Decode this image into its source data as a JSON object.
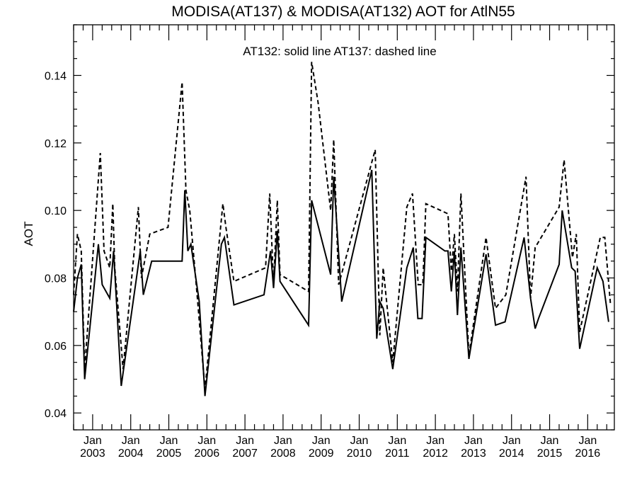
{
  "chart_data": {
    "type": "line",
    "title": "MODISA(AT137) & MODISA(AT132)  AOT for AtlN55",
    "annotation": "AT132: solid line   AT137: dashed line",
    "xlabel": "",
    "ylabel": "AOT",
    "ylim": [
      0.035,
      0.155
    ],
    "xlim": [
      2002.5,
      2016.7
    ],
    "y_ticks": [
      0.04,
      0.06,
      0.08,
      0.1,
      0.12,
      0.14
    ],
    "y_tick_labels": [
      "0.04",
      "0.06",
      "0.08",
      "0.10",
      "0.12",
      "0.14"
    ],
    "x_ticks": [
      {
        "x": 2003.0,
        "month": "Jan",
        "year": "2003"
      },
      {
        "x": 2004.0,
        "month": "Jan",
        "year": "2004"
      },
      {
        "x": 2005.0,
        "month": "Jan",
        "year": "2005"
      },
      {
        "x": 2006.0,
        "month": "Jan",
        "year": "2006"
      },
      {
        "x": 2007.0,
        "month": "Jan",
        "year": "2007"
      },
      {
        "x": 2008.0,
        "month": "Jan",
        "year": "2008"
      },
      {
        "x": 2009.0,
        "month": "Jan",
        "year": "2009"
      },
      {
        "x": 2010.0,
        "month": "Jan",
        "year": "2010"
      },
      {
        "x": 2011.0,
        "month": "Jan",
        "year": "2011"
      },
      {
        "x": 2012.0,
        "month": "Jan",
        "year": "2012"
      },
      {
        "x": 2013.0,
        "month": "Jan",
        "year": "2013"
      },
      {
        "x": 2014.0,
        "month": "Jan",
        "year": "2014"
      },
      {
        "x": 2015.0,
        "month": "Jan",
        "year": "2015"
      },
      {
        "x": 2016.0,
        "month": "Jan",
        "year": "2016"
      }
    ],
    "grid": false,
    "series": [
      {
        "name": "AT132",
        "style": "solid",
        "color": "#000000",
        "points": [
          [
            2002.5,
            0.07
          ],
          [
            2002.6,
            0.08
          ],
          [
            2002.7,
            0.084
          ],
          [
            2002.79,
            0.05
          ],
          [
            2003.15,
            0.09
          ],
          [
            2003.25,
            0.078
          ],
          [
            2003.45,
            0.074
          ],
          [
            2003.55,
            0.088
          ],
          [
            2003.75,
            0.048
          ],
          [
            2004.25,
            0.088
          ],
          [
            2004.33,
            0.075
          ],
          [
            2004.55,
            0.085
          ],
          [
            2005.04,
            0.085
          ],
          [
            2005.35,
            0.085
          ],
          [
            2005.42,
            0.106
          ],
          [
            2005.5,
            0.088
          ],
          [
            2005.58,
            0.09
          ],
          [
            2005.8,
            0.073
          ],
          [
            2005.95,
            0.045
          ],
          [
            2006.38,
            0.09
          ],
          [
            2006.46,
            0.092
          ],
          [
            2006.71,
            0.072
          ],
          [
            2007.5,
            0.075
          ],
          [
            2007.67,
            0.088
          ],
          [
            2007.75,
            0.077
          ],
          [
            2007.85,
            0.094
          ],
          [
            2007.92,
            0.079
          ],
          [
            2008.67,
            0.066
          ],
          [
            2008.75,
            0.103
          ],
          [
            2009.25,
            0.081
          ],
          [
            2009.33,
            0.11
          ],
          [
            2009.54,
            0.073
          ],
          [
            2010.33,
            0.112
          ],
          [
            2010.46,
            0.062
          ],
          [
            2010.54,
            0.073
          ],
          [
            2010.63,
            0.071
          ],
          [
            2010.88,
            0.053
          ],
          [
            2011.25,
            0.083
          ],
          [
            2011.42,
            0.089
          ],
          [
            2011.54,
            0.068
          ],
          [
            2011.65,
            0.068
          ],
          [
            2011.75,
            0.092
          ],
          [
            2012.25,
            0.088
          ],
          [
            2012.33,
            0.088
          ],
          [
            2012.42,
            0.076
          ],
          [
            2012.5,
            0.088
          ],
          [
            2012.58,
            0.069
          ],
          [
            2012.67,
            0.089
          ],
          [
            2012.88,
            0.056
          ],
          [
            2013.33,
            0.087
          ],
          [
            2013.58,
            0.066
          ],
          [
            2013.83,
            0.067
          ],
          [
            2014.33,
            0.092
          ],
          [
            2014.5,
            0.074
          ],
          [
            2014.62,
            0.065
          ],
          [
            2014.71,
            0.068
          ],
          [
            2015.25,
            0.084
          ],
          [
            2015.33,
            0.1
          ],
          [
            2015.58,
            0.083
          ],
          [
            2015.67,
            0.082
          ],
          [
            2015.79,
            0.059
          ],
          [
            2016.25,
            0.083
          ],
          [
            2016.4,
            0.079
          ],
          [
            2016.55,
            0.067
          ]
        ]
      },
      {
        "name": "AT137",
        "style": "dashed",
        "color": "#000000",
        "points": [
          [
            2002.5,
            0.075
          ],
          [
            2002.6,
            0.093
          ],
          [
            2002.7,
            0.088
          ],
          [
            2002.79,
            0.053
          ],
          [
            2003.2,
            0.117
          ],
          [
            2003.3,
            0.088
          ],
          [
            2003.45,
            0.083
          ],
          [
            2003.53,
            0.102
          ],
          [
            2003.58,
            0.083
          ],
          [
            2003.8,
            0.053
          ],
          [
            2004.2,
            0.101
          ],
          [
            2004.28,
            0.08
          ],
          [
            2004.5,
            0.093
          ],
          [
            2004.98,
            0.095
          ],
          [
            2005.35,
            0.138
          ],
          [
            2005.45,
            0.106
          ],
          [
            2005.55,
            0.1
          ],
          [
            2005.75,
            0.074
          ],
          [
            2005.95,
            0.047
          ],
          [
            2006.42,
            0.102
          ],
          [
            2006.5,
            0.095
          ],
          [
            2006.71,
            0.079
          ],
          [
            2007.54,
            0.083
          ],
          [
            2007.65,
            0.105
          ],
          [
            2007.75,
            0.078
          ],
          [
            2007.85,
            0.103
          ],
          [
            2007.92,
            0.081
          ],
          [
            2008.67,
            0.076
          ],
          [
            2008.75,
            0.144
          ],
          [
            2008.92,
            0.132
          ],
          [
            2009.25,
            0.1
          ],
          [
            2009.33,
            0.121
          ],
          [
            2009.46,
            0.078
          ],
          [
            2010.42,
            0.118
          ],
          [
            2010.54,
            0.063
          ],
          [
            2010.63,
            0.083
          ],
          [
            2010.88,
            0.055
          ],
          [
            2011.25,
            0.101
          ],
          [
            2011.4,
            0.105
          ],
          [
            2011.55,
            0.078
          ],
          [
            2011.67,
            0.078
          ],
          [
            2011.75,
            0.102
          ],
          [
            2012.33,
            0.099
          ],
          [
            2012.42,
            0.082
          ],
          [
            2012.5,
            0.093
          ],
          [
            2012.58,
            0.076
          ],
          [
            2012.67,
            0.105
          ],
          [
            2012.88,
            0.057
          ],
          [
            2013.33,
            0.092
          ],
          [
            2013.58,
            0.071
          ],
          [
            2013.85,
            0.075
          ],
          [
            2014.38,
            0.11
          ],
          [
            2014.5,
            0.074
          ],
          [
            2014.62,
            0.089
          ],
          [
            2015.25,
            0.101
          ],
          [
            2015.38,
            0.115
          ],
          [
            2015.6,
            0.086
          ],
          [
            2015.7,
            0.093
          ],
          [
            2015.79,
            0.064
          ],
          [
            2016.33,
            0.092
          ],
          [
            2016.45,
            0.092
          ],
          [
            2016.6,
            0.072
          ]
        ]
      }
    ]
  }
}
